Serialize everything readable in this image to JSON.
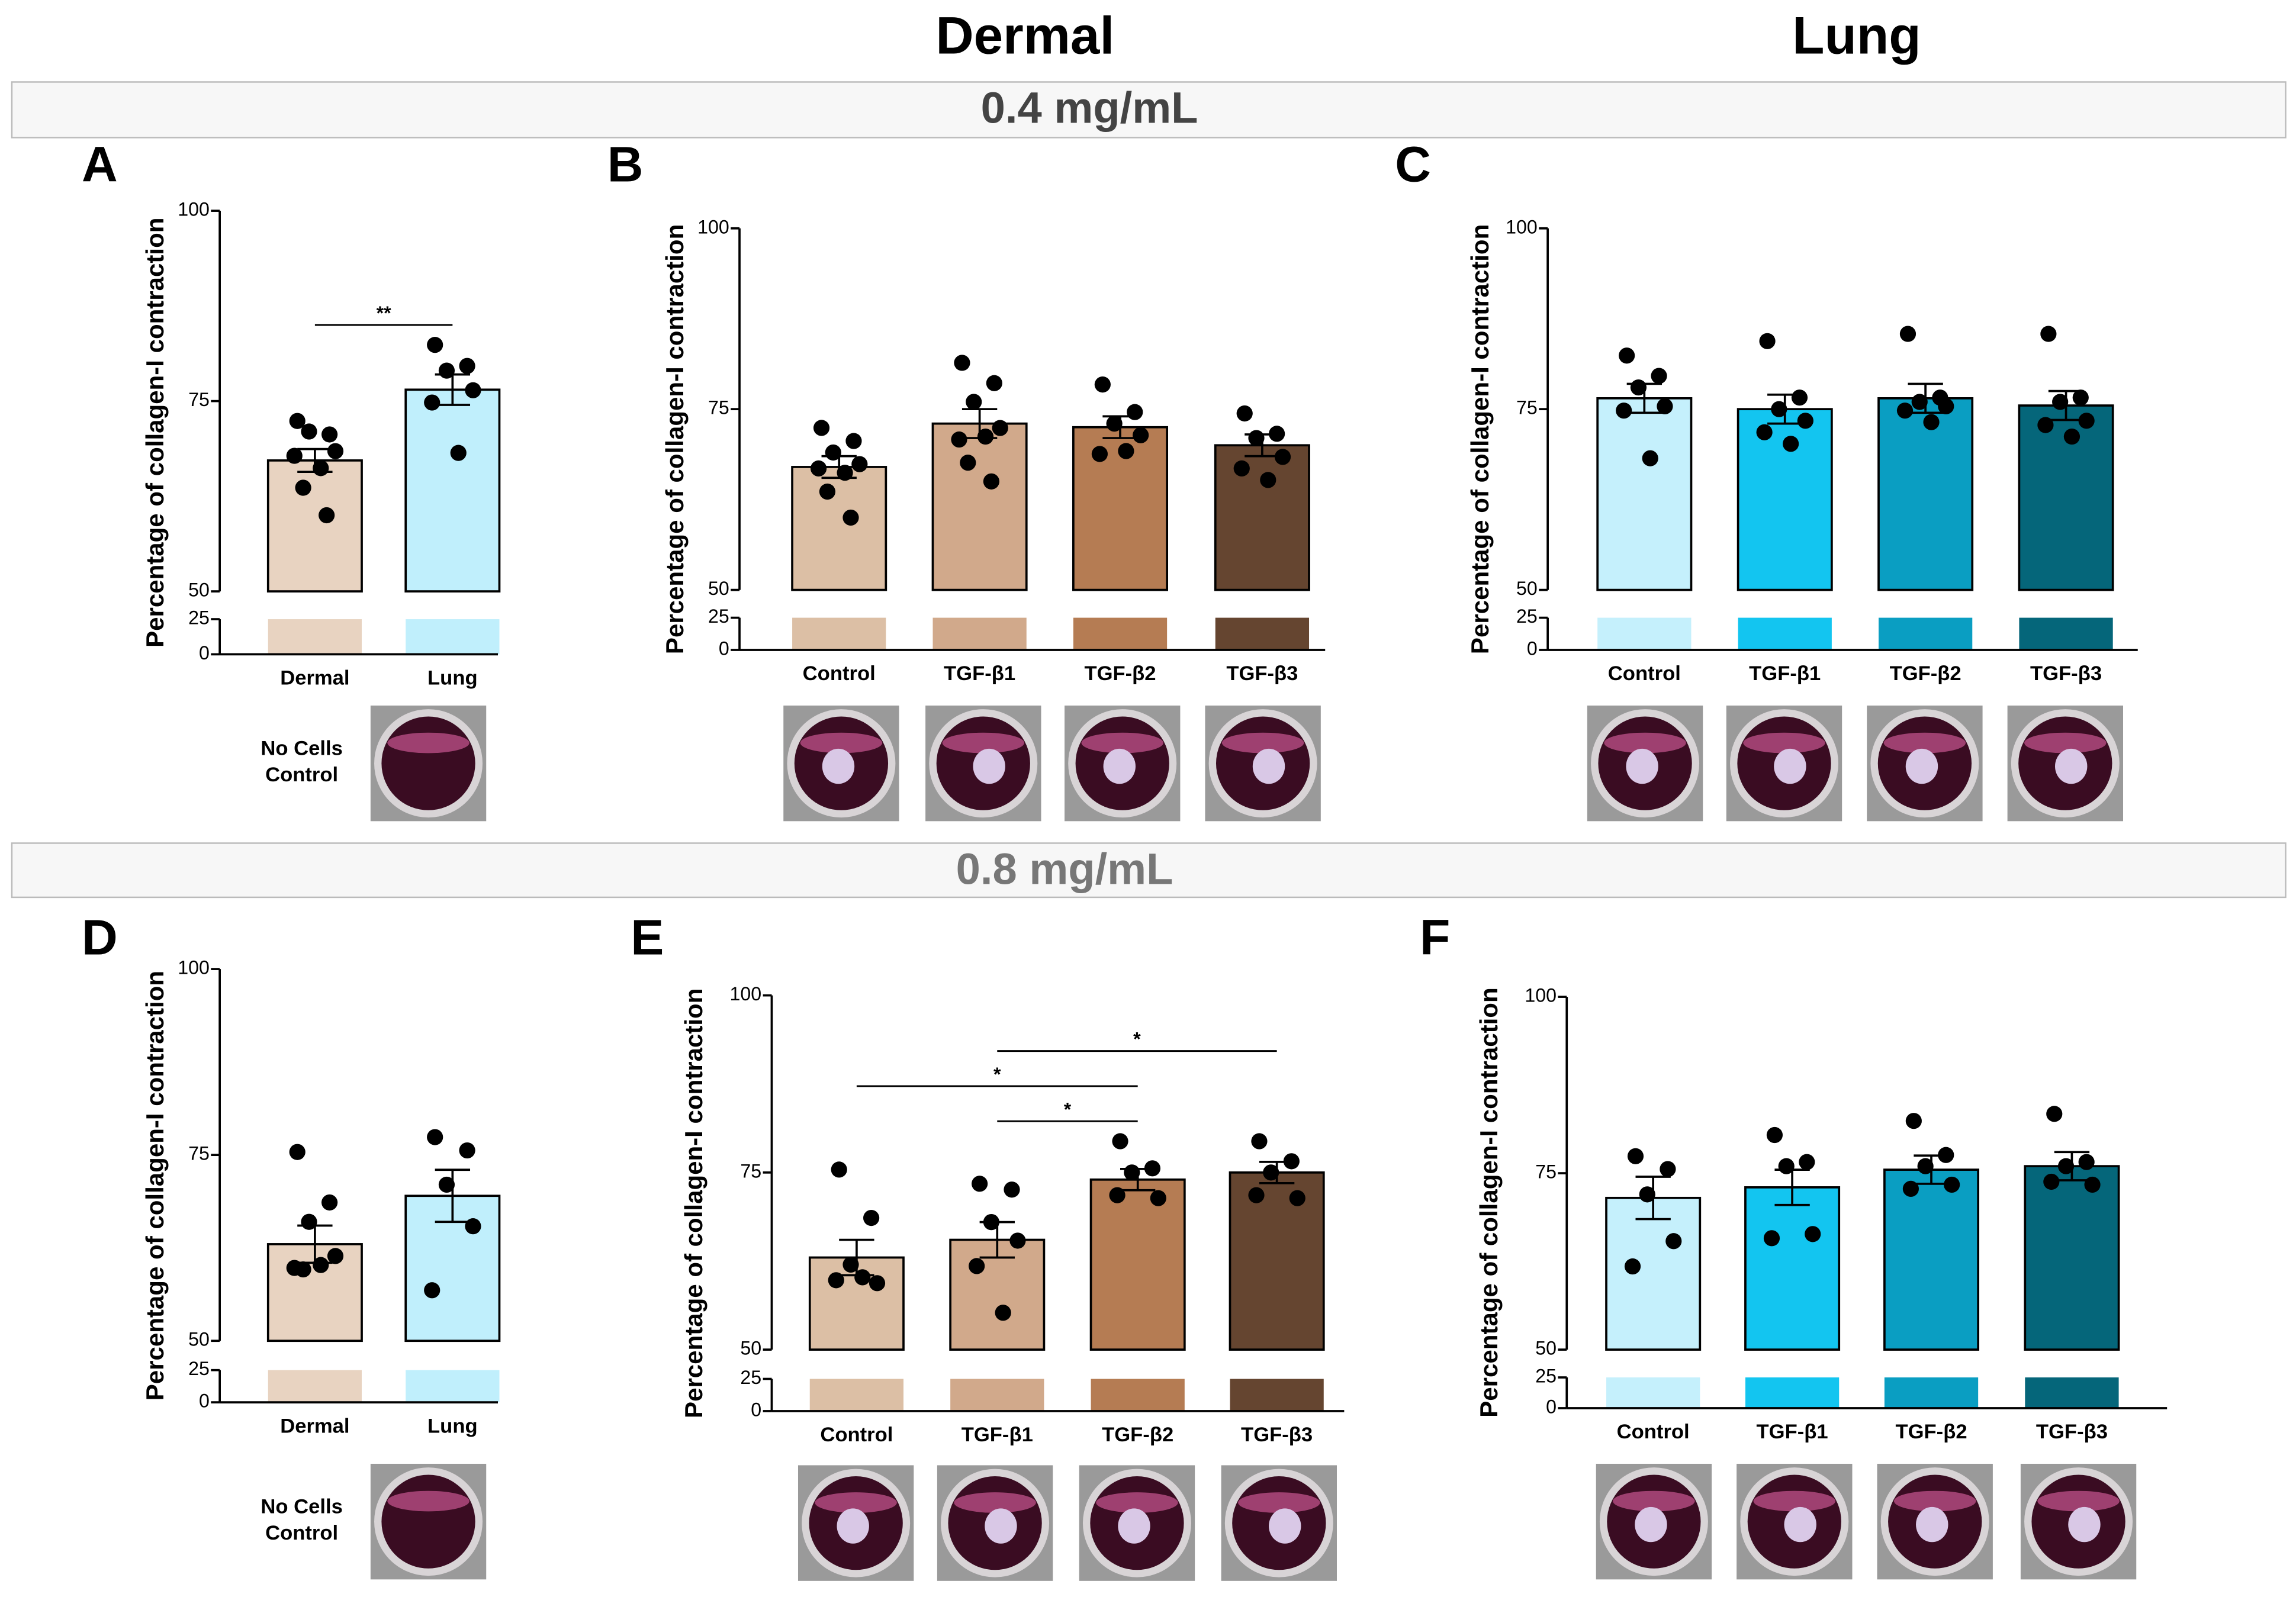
{
  "headers": [
    "Dermal",
    "Lung"
  ],
  "sections": [
    "0.4 mg/mL",
    "0.8 mg/mL"
  ],
  "chart_data": [
    {
      "type": "bar",
      "panel": "A",
      "ylabel": "Percentage of collagen-I contraction",
      "categories": [
        "Dermal",
        "Lung"
      ],
      "values": [
        67.2,
        76.5
      ],
      "errors": [
        1.5,
        2
      ],
      "points": [
        [
          72,
          71,
          71,
          69,
          68,
          66,
          64,
          60
        ],
        [
          82,
          80,
          79,
          77,
          75,
          68
        ]
      ],
      "colors": [
        "#e8d3c1",
        "#c0effc"
      ],
      "ylim": [
        0,
        100
      ],
      "yticks": [
        0,
        25,
        50,
        75,
        100
      ],
      "axis_break": [
        25,
        50
      ],
      "significance": [
        {
          "categories": [
            "Dermal",
            "Lung"
          ],
          "label": "**"
        }
      ],
      "image_label": [
        "No Cells",
        "Control"
      ]
    },
    {
      "type": "bar",
      "panel": "B",
      "ylabel": "Percentage of collagen-I contraction",
      "categories": [
        "Control",
        "TGF-β1",
        "TGF-β2",
        "TGF-β3"
      ],
      "values": [
        67,
        73,
        72.5,
        70
      ],
      "errors": [
        1.5,
        2,
        1.5,
        1.5
      ],
      "points": [
        [
          72,
          71,
          69,
          68,
          67,
          66,
          64,
          60
        ],
        [
          81,
          79,
          76,
          73,
          71,
          71,
          68,
          65
        ],
        [
          78,
          75,
          73,
          72,
          69,
          69
        ],
        [
          74,
          72,
          71,
          69,
          67,
          65
        ]
      ],
      "colors": [
        "#dcbfa5",
        "#d1a98b",
        "#b57c53",
        "#654530"
      ],
      "ylim": [
        0,
        100
      ],
      "yticks": [
        0,
        25,
        50,
        75,
        100
      ],
      "axis_break": [
        25,
        50
      ],
      "significance": []
    },
    {
      "type": "bar",
      "panel": "C",
      "ylabel": "Percentage of collagen-I contraction",
      "categories": [
        "Control",
        "TGF-β1",
        "TGF-β2",
        "TGF-β3"
      ],
      "values": [
        76.5,
        75,
        76.5,
        75.5
      ],
      "errors": [
        2,
        2,
        2,
        2
      ],
      "points": [
        [
          82,
          80,
          78,
          76,
          75,
          68
        ],
        [
          84,
          77,
          75,
          74,
          72,
          70
        ],
        [
          85,
          77,
          76,
          76,
          75,
          73
        ],
        [
          85,
          77,
          76,
          74,
          73,
          71
        ]
      ],
      "colors": [
        "#c5f0fc",
        "#13c5f0",
        "#0a9ec2",
        "#05667a"
      ],
      "ylim": [
        0,
        100
      ],
      "yticks": [
        0,
        25,
        50,
        75,
        100
      ],
      "axis_break": [
        25,
        50
      ],
      "significance": []
    },
    {
      "type": "bar",
      "panel": "D",
      "ylabel": "Percentage of collagen-I contraction",
      "categories": [
        "Dermal",
        "Lung"
      ],
      "values": [
        63,
        69.5
      ],
      "errors": [
        2.5,
        3.5
      ],
      "points": [
        [
          75,
          69,
          66,
          62,
          60,
          60,
          60
        ],
        [
          77,
          76,
          71,
          66,
          57
        ]
      ],
      "colors": [
        "#e8d3c1",
        "#c0effc"
      ],
      "ylim": [
        0,
        100
      ],
      "yticks": [
        0,
        25,
        50,
        75,
        100
      ],
      "axis_break": [
        25,
        50
      ],
      "significance": [],
      "image_label": [
        "No Cells",
        "Control"
      ]
    },
    {
      "type": "bar",
      "panel": "E",
      "ylabel": "Percentage of collagen-I contraction",
      "categories": [
        "Control",
        "TGF-β1",
        "TGF-β2",
        "TGF-β3"
      ],
      "values": [
        63,
        65.5,
        74,
        75
      ],
      "errors": [
        2.5,
        2.5,
        1.5,
        1.5
      ],
      "points": [
        [
          75,
          69,
          62,
          60,
          60,
          60
        ],
        [
          73,
          73,
          68,
          66,
          62,
          55
        ],
        [
          79,
          76,
          75,
          72,
          72
        ],
        [
          79,
          77,
          75,
          72,
          72
        ]
      ],
      "colors": [
        "#dcbfa5",
        "#d1a98b",
        "#b57c53",
        "#654530"
      ],
      "ylim": [
        0,
        100
      ],
      "yticks": [
        0,
        25,
        50,
        75,
        100
      ],
      "axis_break": [
        25,
        50
      ],
      "significance": [
        {
          "categories": [
            "TGF-β1",
            "TGF-β3"
          ],
          "label": "*"
        },
        {
          "categories": [
            "Control",
            "TGF-β2"
          ],
          "label": "*"
        },
        {
          "categories": [
            "TGF-β1",
            "TGF-β2"
          ],
          "label": "*"
        }
      ]
    },
    {
      "type": "bar",
      "panel": "F",
      "ylabel": "Percentage of collagen-I contraction",
      "categories": [
        "Control",
        "TGF-β1",
        "TGF-β2",
        "TGF-β3"
      ],
      "values": [
        71.5,
        73,
        75.5,
        76
      ],
      "errors": [
        3,
        2.5,
        2,
        2
      ],
      "points": [
        [
          77,
          76,
          72,
          66,
          62
        ],
        [
          80,
          77,
          76,
          67,
          66
        ],
        [
          82,
          78,
          76,
          74,
          73
        ],
        [
          83,
          77,
          76,
          74,
          74
        ]
      ],
      "colors": [
        "#c5f0fc",
        "#13c5f0",
        "#0a9ec2",
        "#05667a"
      ],
      "ylim": [
        0,
        100
      ],
      "yticks": [
        0,
        25,
        50,
        75,
        100
      ],
      "axis_break": [
        25,
        50
      ],
      "significance": []
    }
  ]
}
